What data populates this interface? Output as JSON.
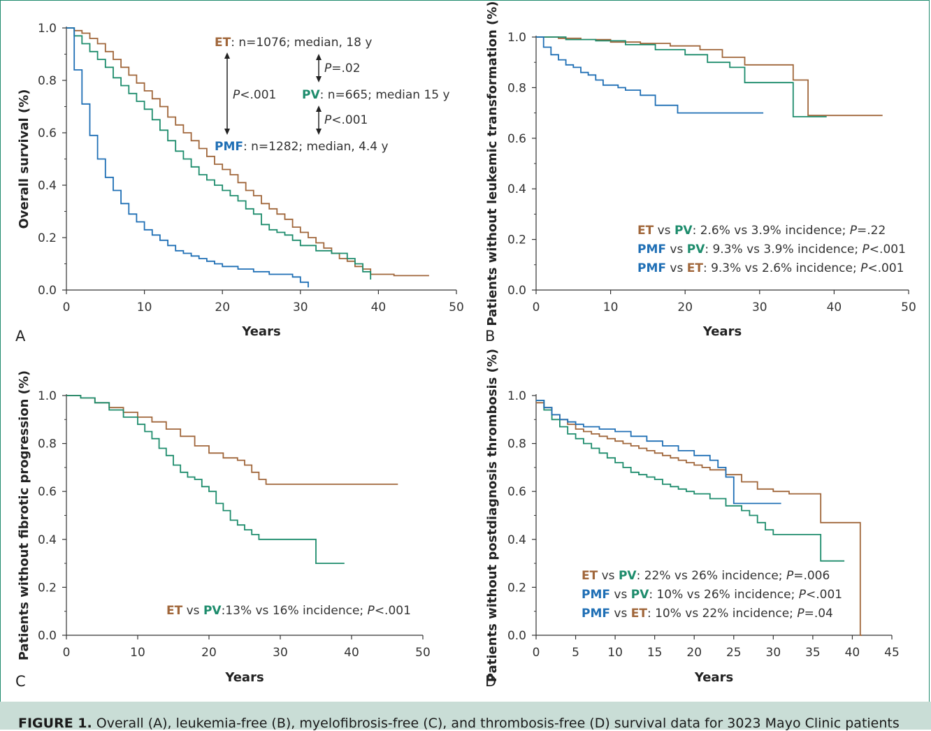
{
  "caption": {
    "label": "FIGURE 1.",
    "text": "Overall (A), leukemia-free (B), myelofibrosis-free (C), and thrombosis-free (D) survival data for 3023 Mayo Clinic patients"
  },
  "colors": {
    "ET": "#a0663a",
    "PV": "#1d8c6c",
    "PMF": "#1f6fb5",
    "axis": "#333333"
  },
  "chart_data": [
    {
      "panel": "A",
      "type": "line",
      "step": true,
      "xlabel": "Years",
      "ylabel": "Overall survival (%)",
      "xlim": [
        0,
        50
      ],
      "ylim": [
        0,
        1
      ],
      "xticks": [
        0,
        10,
        20,
        30,
        40,
        50
      ],
      "yticks": [
        "0.0",
        "0.2",
        "0.4",
        "0.6",
        "0.8",
        "1.0"
      ],
      "series": [
        {
          "name": "ET",
          "x": [
            0,
            1,
            2,
            3,
            4,
            5,
            6,
            7,
            8,
            9,
            10,
            11,
            12,
            13,
            14,
            15,
            16,
            17,
            18,
            19,
            20,
            21,
            22,
            23,
            24,
            25,
            26,
            27,
            28,
            29,
            30,
            31,
            32,
            33,
            34,
            35,
            36,
            37,
            38,
            39,
            40,
            42,
            46.5
          ],
          "y": [
            1.0,
            0.99,
            0.98,
            0.96,
            0.94,
            0.91,
            0.88,
            0.85,
            0.82,
            0.79,
            0.76,
            0.73,
            0.7,
            0.66,
            0.63,
            0.6,
            0.57,
            0.54,
            0.51,
            0.48,
            0.46,
            0.44,
            0.41,
            0.38,
            0.36,
            0.33,
            0.31,
            0.29,
            0.27,
            0.24,
            0.22,
            0.2,
            0.18,
            0.16,
            0.14,
            0.12,
            0.11,
            0.09,
            0.08,
            0.06,
            0.06,
            0.055,
            0.055
          ]
        },
        {
          "name": "PV",
          "x": [
            0,
            1,
            2,
            3,
            4,
            5,
            6,
            7,
            8,
            9,
            10,
            11,
            12,
            13,
            14,
            15,
            16,
            17,
            18,
            19,
            20,
            21,
            22,
            23,
            24,
            25,
            26,
            27,
            28,
            29,
            30,
            32,
            34,
            36,
            37,
            38,
            39
          ],
          "y": [
            1.0,
            0.97,
            0.94,
            0.91,
            0.88,
            0.85,
            0.81,
            0.78,
            0.75,
            0.72,
            0.69,
            0.65,
            0.61,
            0.57,
            0.53,
            0.5,
            0.47,
            0.44,
            0.42,
            0.4,
            0.38,
            0.36,
            0.34,
            0.31,
            0.29,
            0.25,
            0.23,
            0.22,
            0.21,
            0.19,
            0.17,
            0.15,
            0.14,
            0.12,
            0.1,
            0.07,
            0.04
          ]
        },
        {
          "name": "PMF",
          "x": [
            0,
            1,
            2,
            3,
            4,
            5,
            6,
            7,
            8,
            9,
            10,
            11,
            12,
            13,
            14,
            15,
            16,
            17,
            18,
            19,
            20,
            22,
            24,
            26,
            28,
            29,
            30,
            31
          ],
          "y": [
            1.0,
            0.84,
            0.71,
            0.59,
            0.5,
            0.43,
            0.38,
            0.33,
            0.29,
            0.26,
            0.23,
            0.21,
            0.19,
            0.17,
            0.15,
            0.14,
            0.13,
            0.12,
            0.11,
            0.1,
            0.09,
            0.08,
            0.07,
            0.06,
            0.06,
            0.05,
            0.03,
            0.01
          ]
        }
      ],
      "annotations": {
        "et_label": "ET",
        "et_text": ": n=1076; median, 18 y",
        "pv_label": "PV",
        "pv_text": ": n=665; median 15 y",
        "pmf_label": "PMF",
        "pmf_text": ": n=1282; median, 4.4 y",
        "p1_italic": "P",
        "p1_text": "<.001",
        "p2_italic": "P",
        "p2_text": "=.02",
        "p3_italic": "P",
        "p3_text": "<.001"
      }
    },
    {
      "panel": "B",
      "type": "line",
      "step": true,
      "xlabel": "Years",
      "ylabel": "Patients without leukemic transformation (%)",
      "xlim": [
        0,
        50
      ],
      "ylim": [
        0,
        1
      ],
      "xticks": [
        0,
        10,
        20,
        30,
        40,
        50
      ],
      "yticks": [
        "0.0",
        "0.2",
        "0.4",
        "0.6",
        "0.8",
        "1.0"
      ],
      "series": [
        {
          "name": "ET",
          "x": [
            0,
            3,
            6,
            10,
            14,
            18,
            22,
            25,
            28,
            30,
            34,
            34.5,
            36.5,
            46.5
          ],
          "y": [
            1.0,
            0.995,
            0.99,
            0.98,
            0.975,
            0.965,
            0.95,
            0.92,
            0.89,
            0.89,
            0.89,
            0.83,
            0.69,
            0.69
          ]
        },
        {
          "name": "PV",
          "x": [
            0,
            4,
            8,
            12,
            16,
            20,
            23,
            26,
            28,
            30,
            34,
            34.5,
            39
          ],
          "y": [
            1.0,
            0.99,
            0.985,
            0.97,
            0.95,
            0.93,
            0.9,
            0.88,
            0.82,
            0.82,
            0.82,
            0.685,
            0.685
          ]
        },
        {
          "name": "PMF",
          "x": [
            0,
            1,
            2,
            3,
            4,
            5,
            6,
            7,
            8,
            9,
            10,
            11,
            12,
            14,
            16,
            19,
            22,
            25,
            28,
            30.5
          ],
          "y": [
            1.0,
            0.96,
            0.93,
            0.91,
            0.89,
            0.88,
            0.86,
            0.85,
            0.83,
            0.81,
            0.81,
            0.8,
            0.79,
            0.77,
            0.73,
            0.7,
            0.7,
            0.7,
            0.7,
            0.7
          ]
        }
      ],
      "legend": [
        {
          "a": "ET",
          "vs": " vs ",
          "b": "PV",
          "text": ": 2.6% vs 3.9% incidence; ",
          "p": "P",
          "tail": "=.22"
        },
        {
          "a": "PMF",
          "vs": " vs ",
          "b": "PV",
          "text": ": 9.3% vs 3.9% incidence; ",
          "p": "P",
          "tail": "<.001"
        },
        {
          "a": "PMF",
          "vs": " vs ",
          "b": "ET",
          "text": ": 9.3% vs 2.6% incidence; ",
          "p": "P",
          "tail": "<.001"
        }
      ]
    },
    {
      "panel": "C",
      "type": "line",
      "step": true,
      "xlabel": "Years",
      "ylabel": "Patients without fibrotic progression (%)",
      "xlim": [
        0,
        50
      ],
      "ylim": [
        0,
        1
      ],
      "xticks": [
        0,
        10,
        20,
        30,
        40,
        50
      ],
      "yticks": [
        "0.0",
        "0.2",
        "0.4",
        "0.6",
        "0.8",
        "1.0"
      ],
      "series": [
        {
          "name": "ET",
          "x": [
            0,
            2,
            4,
            6,
            8,
            10,
            12,
            14,
            16,
            18,
            20,
            22,
            24,
            25,
            26,
            27,
            28,
            30,
            32,
            35,
            40,
            46.5
          ],
          "y": [
            1.0,
            0.99,
            0.97,
            0.95,
            0.93,
            0.91,
            0.89,
            0.86,
            0.83,
            0.79,
            0.76,
            0.74,
            0.73,
            0.71,
            0.68,
            0.65,
            0.63,
            0.63,
            0.63,
            0.63,
            0.63,
            0.63
          ]
        },
        {
          "name": "PV",
          "x": [
            0,
            2,
            4,
            6,
            8,
            10,
            11,
            12,
            13,
            14,
            15,
            16,
            17,
            18,
            19,
            20,
            21,
            22,
            23,
            24,
            25,
            26,
            27,
            28,
            30,
            32,
            35,
            39
          ],
          "y": [
            1.0,
            0.99,
            0.97,
            0.94,
            0.91,
            0.88,
            0.85,
            0.82,
            0.78,
            0.75,
            0.71,
            0.68,
            0.66,
            0.65,
            0.62,
            0.6,
            0.55,
            0.52,
            0.48,
            0.46,
            0.44,
            0.42,
            0.4,
            0.4,
            0.4,
            0.4,
            0.3,
            0.3
          ]
        }
      ],
      "legend": [
        {
          "a": "ET",
          "vs": " vs ",
          "b": "PV",
          "text": ":13% vs 16% incidence; ",
          "p": "P",
          "tail": "<.001"
        }
      ]
    },
    {
      "panel": "D",
      "type": "line",
      "step": true,
      "xlabel": "Years",
      "ylabel": "Patients without postdiagnosis thrombosis (%)",
      "xlim": [
        0,
        45
      ],
      "ylim": [
        0,
        1
      ],
      "xticks": [
        0,
        5,
        10,
        15,
        20,
        25,
        30,
        35,
        40,
        45
      ],
      "yticks": [
        "0.0",
        "0.2",
        "0.4",
        "0.6",
        "0.8",
        "1.0"
      ],
      "series": [
        {
          "name": "ET",
          "x": [
            0,
            1,
            2,
            3,
            4,
            5,
            6,
            7,
            8,
            9,
            10,
            11,
            12,
            13,
            14,
            15,
            16,
            17,
            18,
            19,
            20,
            21,
            22,
            24,
            26,
            28,
            30,
            32,
            34,
            36,
            38,
            40,
            41,
            41.2
          ],
          "y": [
            0.97,
            0.95,
            0.92,
            0.9,
            0.88,
            0.86,
            0.85,
            0.84,
            0.83,
            0.82,
            0.81,
            0.8,
            0.79,
            0.78,
            0.77,
            0.76,
            0.75,
            0.74,
            0.73,
            0.72,
            0.71,
            0.7,
            0.69,
            0.67,
            0.64,
            0.61,
            0.6,
            0.59,
            0.59,
            0.47,
            0.47,
            0.47,
            0.0,
            0.0
          ]
        },
        {
          "name": "PV",
          "x": [
            0,
            1,
            2,
            3,
            4,
            5,
            6,
            7,
            8,
            9,
            10,
            11,
            12,
            13,
            14,
            15,
            16,
            17,
            18,
            19,
            20,
            22,
            24,
            26,
            27,
            28,
            29,
            30,
            32,
            34,
            36,
            38,
            39
          ],
          "y": [
            0.98,
            0.94,
            0.9,
            0.87,
            0.84,
            0.82,
            0.8,
            0.78,
            0.76,
            0.74,
            0.72,
            0.7,
            0.68,
            0.67,
            0.66,
            0.65,
            0.63,
            0.62,
            0.61,
            0.6,
            0.59,
            0.57,
            0.54,
            0.52,
            0.5,
            0.47,
            0.44,
            0.42,
            0.42,
            0.42,
            0.31,
            0.31,
            0.31
          ]
        },
        {
          "name": "PMF",
          "x": [
            0,
            1,
            2,
            3,
            4,
            5,
            6,
            8,
            10,
            12,
            14,
            16,
            18,
            20,
            22,
            23,
            24,
            25,
            26,
            28,
            30,
            31
          ],
          "y": [
            0.98,
            0.95,
            0.92,
            0.9,
            0.89,
            0.88,
            0.87,
            0.86,
            0.85,
            0.83,
            0.81,
            0.79,
            0.77,
            0.75,
            0.73,
            0.7,
            0.66,
            0.55,
            0.55,
            0.55,
            0.55,
            0.55
          ]
        }
      ],
      "legend": [
        {
          "a": "ET",
          "vs": " vs ",
          "b": "PV",
          "text": ": 22% vs 26% incidence; ",
          "p": "P",
          "tail": "=.006"
        },
        {
          "a": "PMF",
          "vs": " vs ",
          "b": "PV",
          "text": ": 10% vs 26% incidence; ",
          "p": "P",
          "tail": "<.001"
        },
        {
          "a": "PMF",
          "vs": " vs ",
          "b": "ET",
          "text": ": 10% vs 22% incidence; ",
          "p": "P",
          "tail": "=.04"
        }
      ]
    }
  ]
}
